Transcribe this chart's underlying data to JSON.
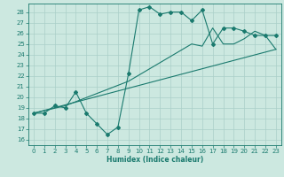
{
  "xlabel": "Humidex (Indice chaleur)",
  "bg_color": "#cce8e0",
  "grid_color": "#aacfc8",
  "line_color": "#1a7a6e",
  "xlim": [
    -0.5,
    23.5
  ],
  "ylim": [
    15.5,
    28.8
  ],
  "xticks": [
    0,
    1,
    2,
    3,
    4,
    5,
    6,
    7,
    8,
    9,
    10,
    11,
    12,
    13,
    14,
    15,
    16,
    17,
    18,
    19,
    20,
    21,
    22,
    23
  ],
  "yticks": [
    16,
    17,
    18,
    19,
    20,
    21,
    22,
    23,
    24,
    25,
    26,
    27,
    28
  ],
  "curve1_x": [
    0,
    1,
    2,
    3,
    4,
    5,
    6,
    7,
    8,
    9,
    10,
    11,
    12,
    13,
    14,
    15,
    16,
    17,
    18,
    19,
    20,
    21,
    22,
    23
  ],
  "curve1_y": [
    18.5,
    18.5,
    19.2,
    19.0,
    20.5,
    18.5,
    17.5,
    16.5,
    17.2,
    22.2,
    28.2,
    28.5,
    27.8,
    28.0,
    28.0,
    27.2,
    28.2,
    25.0,
    26.5,
    26.5,
    26.2,
    25.8,
    25.8,
    25.8
  ],
  "curve2_x": [
    0,
    23
  ],
  "curve2_y": [
    18.5,
    24.5
  ],
  "curve3_x": [
    0,
    3,
    9,
    15,
    16,
    17,
    18,
    19,
    20,
    21,
    22,
    23
  ],
  "curve3_y": [
    18.5,
    19.2,
    21.5,
    25.0,
    24.8,
    26.5,
    25.0,
    25.0,
    25.5,
    26.2,
    25.8,
    24.5
  ],
  "tick_fontsize": 5.0,
  "xlabel_fontsize": 5.5,
  "marker_size": 2.0,
  "linewidth": 0.8
}
